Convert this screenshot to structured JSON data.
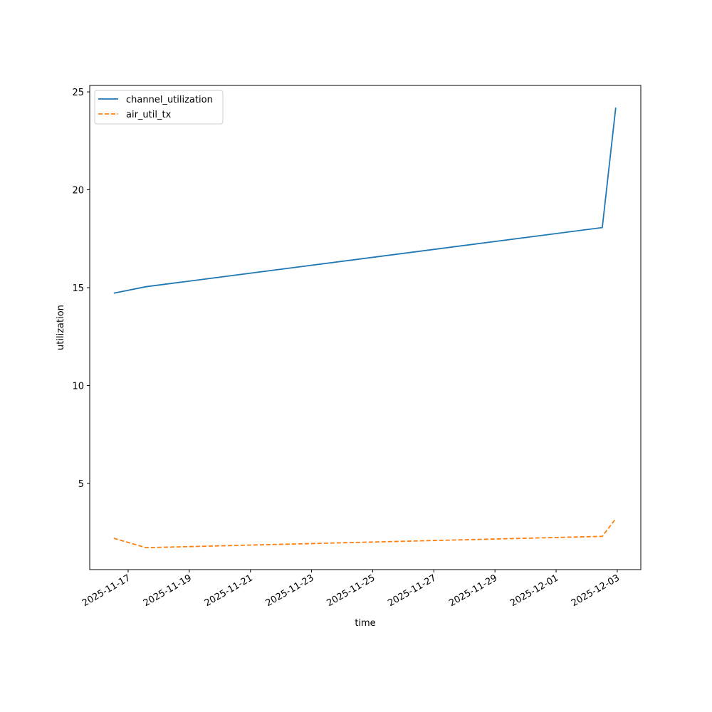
{
  "chart_data": {
    "type": "line",
    "x_label": "time",
    "y_label": "utilization",
    "x": [
      "2025-11-16T12:45",
      "2025-11-17T14:00",
      "2025-12-02T12:15",
      "2025-12-02T22:50"
    ],
    "series": [
      {
        "name": "channel_utilization",
        "color": "#1f77b4",
        "linestyle": "solid",
        "values": [
          14.72,
          15.05,
          18.07,
          24.2
        ]
      },
      {
        "name": "air_util_tx",
        "color": "#ff7f0e",
        "linestyle": "dashed",
        "values": [
          2.2,
          1.72,
          2.3,
          3.2
        ]
      }
    ],
    "xlim": [
      "2025-11-15T17:50",
      "2025-12-03T18:30"
    ],
    "xticks": [
      "2025-11-17",
      "2025-11-19",
      "2025-11-21",
      "2025-11-23",
      "2025-11-25",
      "2025-11-27",
      "2025-11-29",
      "2025-12-01",
      "2025-12-03"
    ],
    "ylim": [
      0.6,
      25.33
    ],
    "yticks": [
      5,
      10,
      15,
      20,
      25
    ],
    "grid": false,
    "legend": "upper left"
  }
}
